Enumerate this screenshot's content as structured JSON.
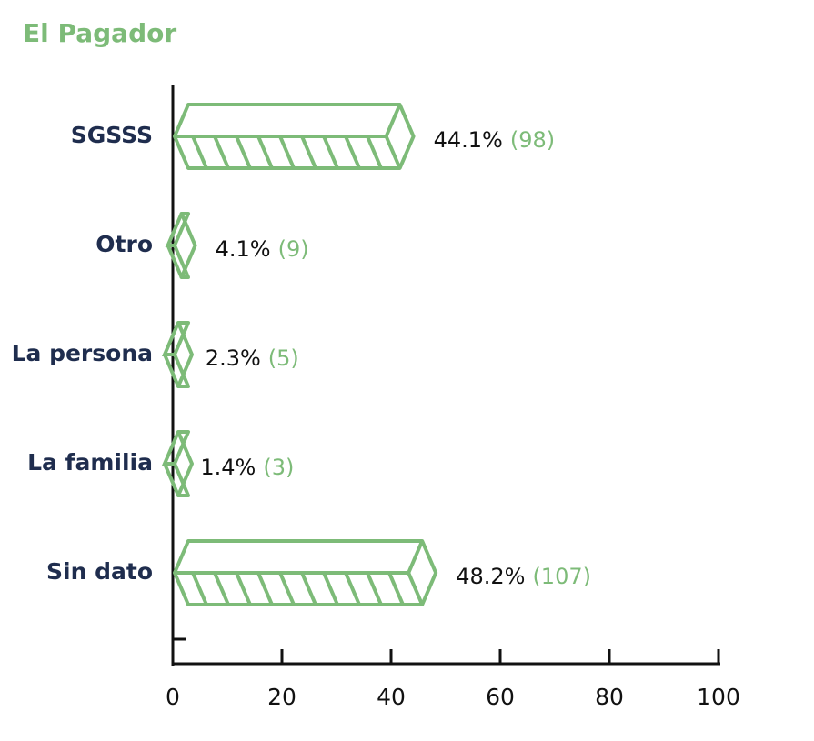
{
  "chart_data": {
    "type": "bar",
    "orientation": "horizontal",
    "title": "El Pagador",
    "categories": [
      "SGSSS",
      "Otro",
      "La persona",
      "La familia",
      "Sin dato"
    ],
    "values": [
      44.1,
      4.1,
      2.3,
      1.4,
      48.2
    ],
    "value_labels": [
      "44.1%",
      "4.1%",
      "2.3%",
      "1.4%",
      "48.2%"
    ],
    "count_labels": [
      "(98)",
      "(9)",
      "(5)",
      "(3)",
      "(107)"
    ],
    "color": "#7dbb78",
    "xlim": [
      0,
      100
    ],
    "xticks": [
      0,
      20,
      40,
      60,
      80,
      100
    ]
  }
}
